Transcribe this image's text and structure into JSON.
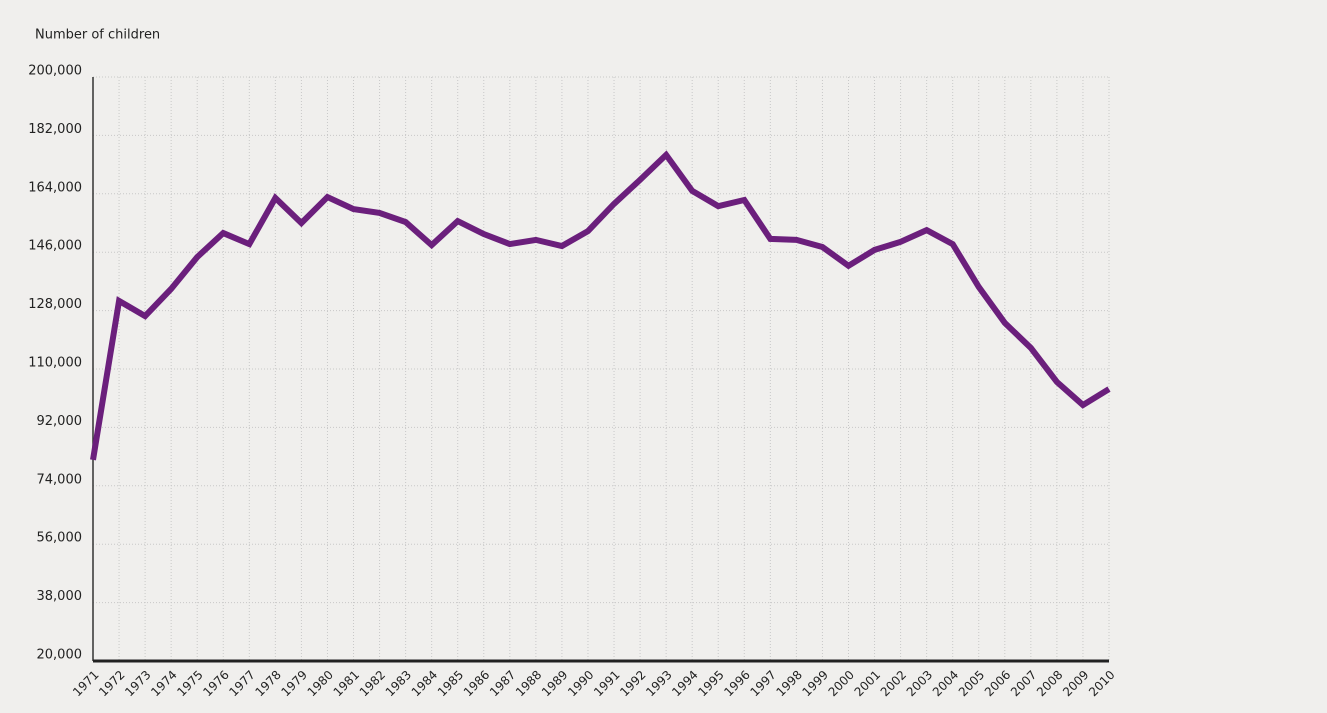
{
  "chart_data": {
    "type": "line",
    "y_axis_label": "Number of children",
    "categories": [
      "1971",
      "1972",
      "1973",
      "1974",
      "1975",
      "1976",
      "1977",
      "1978",
      "1979",
      "1980",
      "1981",
      "1982",
      "1983",
      "1984",
      "1985",
      "1986",
      "1987",
      "1988",
      "1989",
      "1990",
      "1991",
      "1992",
      "1993",
      "1994",
      "1995",
      "1996",
      "1997",
      "1998",
      "1999",
      "2000",
      "2001",
      "2002",
      "2003",
      "2004",
      "2005",
      "2006",
      "2007",
      "2008",
      "2009",
      "2010"
    ],
    "values": [
      82000,
      131000,
      126300,
      134700,
      144500,
      151900,
      148500,
      162700,
      155000,
      163000,
      159300,
      158100,
      155300,
      148200,
      155600,
      151600,
      148500,
      149800,
      147900,
      152500,
      160900,
      168300,
      176000,
      164900,
      160200,
      162100,
      150100,
      149800,
      147600,
      141800,
      146700,
      149200,
      152800,
      148500,
      135300,
      124200,
      116500,
      106000,
      98900,
      103800
    ],
    "color": "#6b1f7c",
    "ylim": [
      20000,
      200000
    ],
    "yticks": [
      {
        "value": 20000,
        "label": "20,000"
      },
      {
        "value": 38000,
        "label": "38,000"
      },
      {
        "value": 56000,
        "label": "56,000"
      },
      {
        "value": 74000,
        "label": "74,000"
      },
      {
        "value": 92000,
        "label": "92,000"
      },
      {
        "value": 110000,
        "label": "110,000"
      },
      {
        "value": 128000,
        "label": "128,000"
      },
      {
        "value": 146000,
        "label": "146,000"
      },
      {
        "value": 164000,
        "label": "164,000"
      },
      {
        "value": 182000,
        "label": "182,000"
      },
      {
        "value": 200000,
        "label": "200,000"
      }
    ],
    "grid": true
  }
}
